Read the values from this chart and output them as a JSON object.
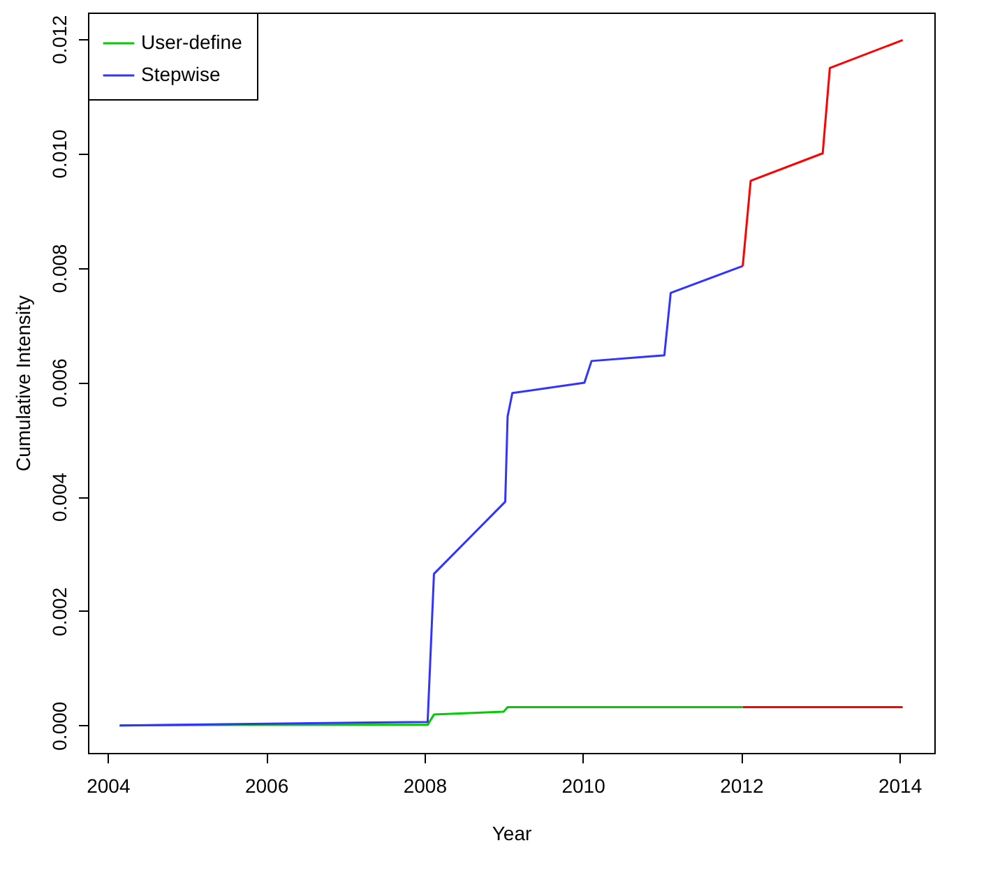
{
  "chart_data": {
    "type": "line",
    "xlabel": "Year",
    "ylabel": "Cumulative Intensity",
    "xlim": [
      2003.75,
      2014.44
    ],
    "ylim": [
      -0.00048,
      0.01246
    ],
    "xticks": [
      2004,
      2006,
      2008,
      2010,
      2012,
      2014
    ],
    "yticks": [
      {
        "value": 0,
        "label": "0.000"
      },
      {
        "value": 0.002,
        "label": "0.002"
      },
      {
        "value": 0.004,
        "label": "0.004"
      },
      {
        "value": 0.006,
        "label": "0.006"
      },
      {
        "value": 0.008,
        "label": "0.008"
      },
      {
        "value": 0.01,
        "label": "0.010"
      },
      {
        "value": 0.012,
        "label": "0.012"
      }
    ],
    "grid": false,
    "legend": "top left",
    "marker": "none",
    "line_style": "solid",
    "series": [
      {
        "name": "User-define",
        "color": "#00cc00",
        "x": [
          2004.15,
          2006.0,
          2008.04,
          2008.12,
          2009.0,
          2009.05,
          2010.0,
          2012.02
        ],
        "values": [
          0,
          1e-05,
          1e-05,
          0.00019,
          0.00024,
          0.00032,
          0.00032,
          0.00032
        ]
      },
      {
        "name": "Stepwise",
        "color": "#3333ff",
        "x": [
          2004.15,
          2006.0,
          2008.04,
          2008.12,
          2009.02,
          2009.05,
          2009.11,
          2010.02,
          2010.11,
          2011.03,
          2011.11,
          2012.02
        ],
        "values": [
          0,
          3e-05,
          6e-05,
          0.00265,
          0.00391,
          0.0054,
          0.00581,
          0.00599,
          0.00637,
          0.00647,
          0.00756,
          0.00803
        ]
      },
      {
        "color": "#ff0000",
        "x": [
          2012.02,
          2012.12,
          2013.03,
          2013.12,
          2014.04
        ],
        "values": [
          0.00803,
          0.00952,
          0.01,
          0.01149,
          0.01198
        ]
      },
      {
        "color": "#ff0000",
        "x": [
          2012.02,
          2013.0,
          2014.04
        ],
        "values": [
          0.00032,
          0.00032,
          0.00032
        ]
      }
    ]
  }
}
